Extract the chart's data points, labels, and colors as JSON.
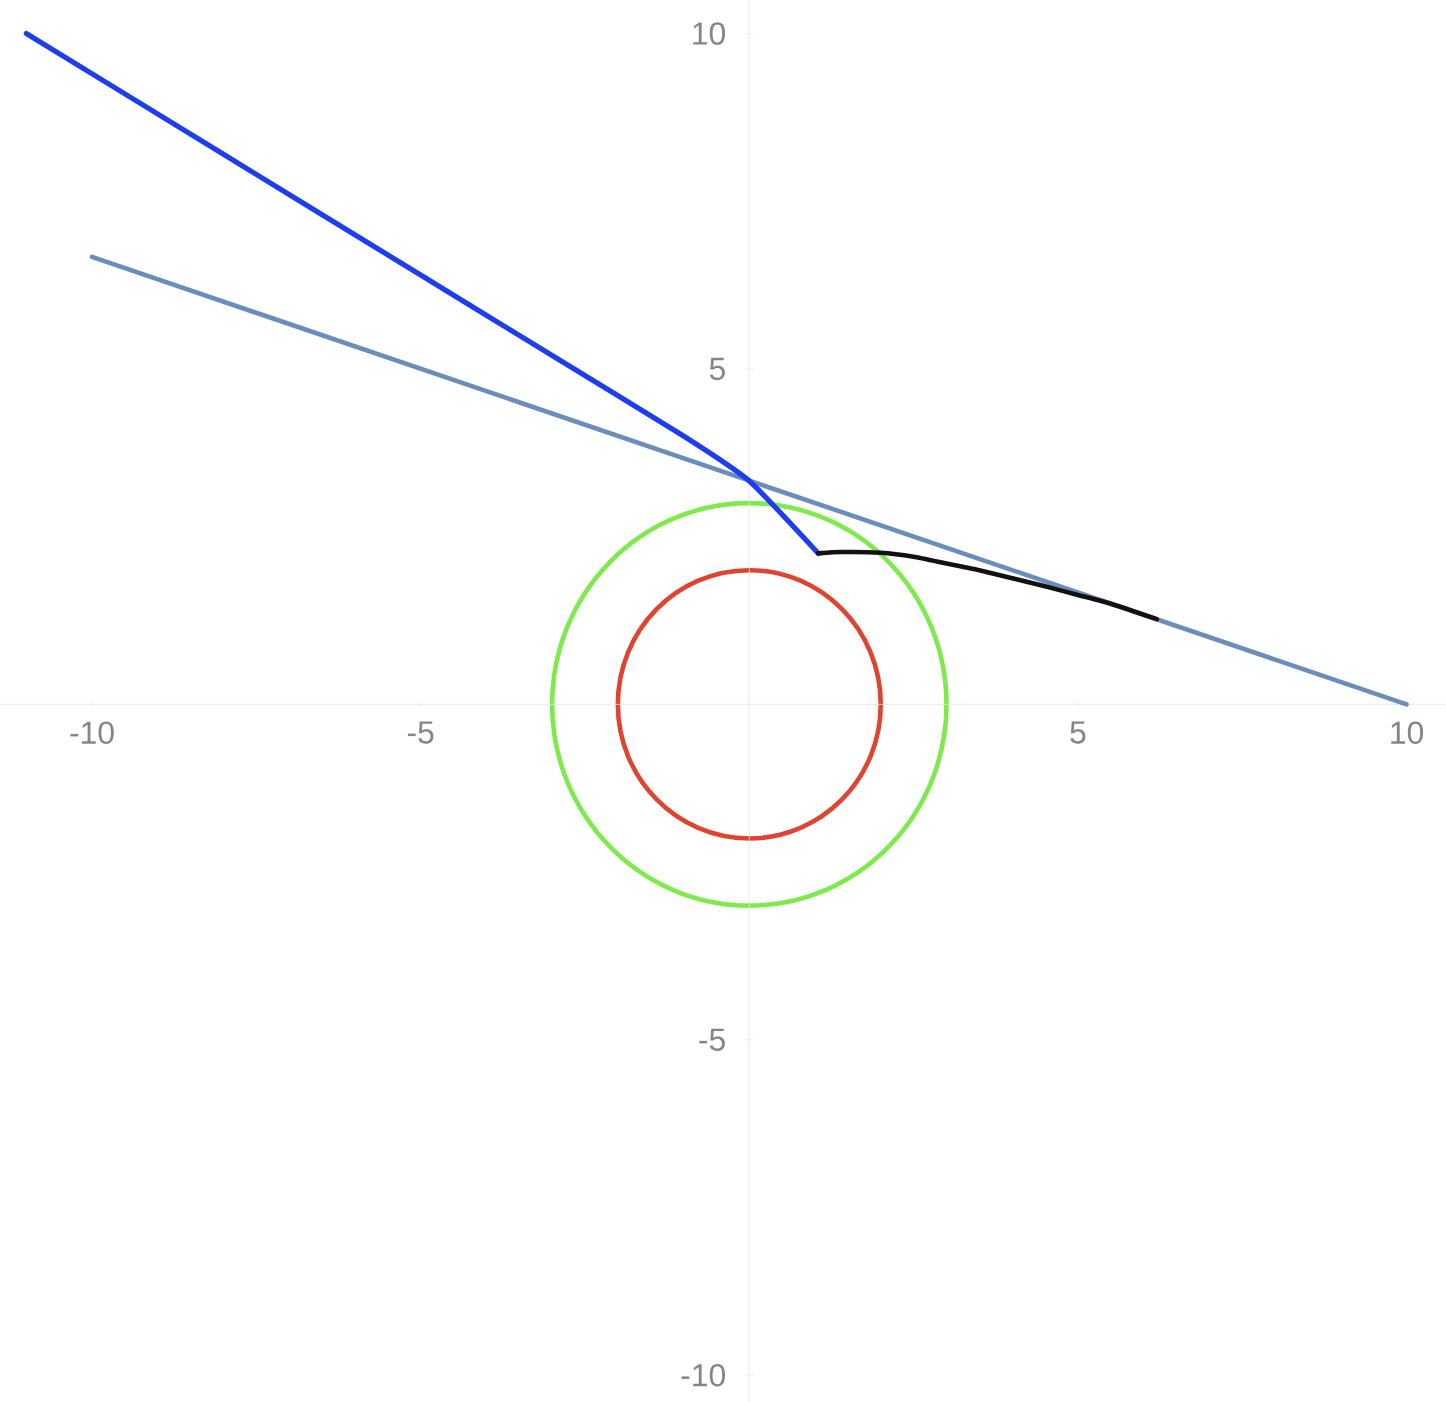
{
  "chart_data": {
    "type": "line",
    "xlim": [
      -11.4,
      10.6
    ],
    "ylim": [
      -10.4,
      10.5
    ],
    "xticks": [
      -10,
      -5,
      5,
      10
    ],
    "yticks": [
      -10,
      -5,
      5,
      10
    ],
    "series": [
      {
        "color": "#6b8dbd",
        "x": [
          -10,
          10
        ],
        "values": [
          6.67,
          0
        ]
      },
      {
        "color": "#1e3cf0",
        "x": [
          -11,
          -8,
          -5,
          -3,
          -1,
          0,
          1.05
        ],
        "values": [
          10,
          8.2,
          6.4,
          5.2,
          4.0,
          3.33,
          2.25
        ]
      },
      {
        "color": "#111111",
        "x": [
          1.05,
          1.4,
          2,
          2.5,
          3,
          3.5,
          4,
          4.5,
          5,
          5.5,
          6.2
        ],
        "values": [
          2.25,
          2.27,
          2.26,
          2.2,
          2.1,
          2.0,
          1.88,
          1.76,
          1.63,
          1.5,
          1.27
        ]
      }
    ]
  }
}
